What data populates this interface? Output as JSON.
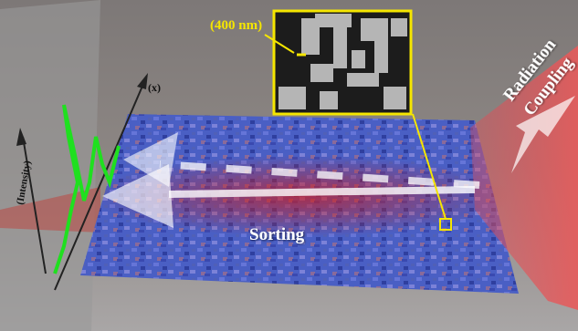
{
  "inset_label": "(400 nm)",
  "radiation_label": [
    "Radiation",
    "Coupling"
  ],
  "sorting_label": "Sorting",
  "x_axis_label": "(x)",
  "y_axis_label": "(Intensity)"
}
